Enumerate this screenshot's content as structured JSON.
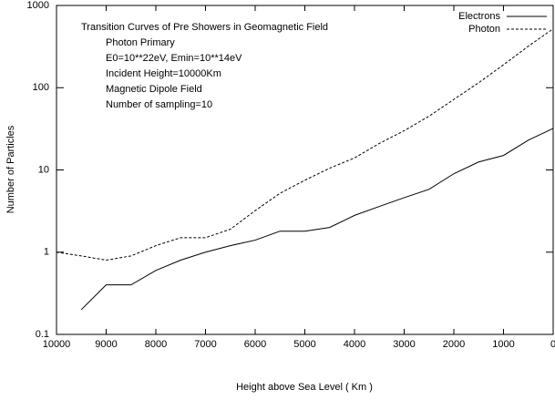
{
  "chart_data": {
    "type": "line",
    "annotations": [
      "Transition Curves of Pre Showers in Geomagnetic Field",
      "Photon Primary",
      "E0=10**22eV, Emin=10**14eV",
      "Incident Height=10000Km",
      "Magnetic Dipole Field",
      "Number of sampling=10"
    ],
    "x_label": "Height above Sea Level ( Km )",
    "y_label": "Number of Particles",
    "x": [
      10000,
      9500,
      9000,
      8500,
      8000,
      7500,
      7000,
      6500,
      6000,
      5500,
      5000,
      4500,
      4000,
      3500,
      3000,
      2500,
      2000,
      1500,
      1000,
      500,
      0
    ],
    "series": [
      {
        "name": "Electrons",
        "color": "#000000",
        "dash": false,
        "values": [
          null,
          0.2,
          0.4,
          0.4,
          0.6,
          0.8,
          1.0,
          1.2,
          1.4,
          1.8,
          1.8,
          2.0,
          2.8,
          3.6,
          4.6,
          5.8,
          9,
          12.5,
          15,
          23,
          32
        ]
      },
      {
        "name": "Photon",
        "color": "#000000",
        "dash": true,
        "values": [
          1.0,
          0.9,
          0.8,
          0.9,
          1.2,
          1.5,
          1.5,
          1.9,
          3.2,
          5.2,
          7.5,
          10.5,
          14,
          21,
          30,
          45,
          72,
          115,
          190,
          320,
          520
        ]
      }
    ],
    "xlim": [
      10000,
      0
    ],
    "xticks": [
      10000,
      9000,
      8000,
      7000,
      6000,
      5000,
      4000,
      3000,
      2000,
      1000,
      0
    ],
    "ylim": [
      0.1,
      1000
    ],
    "yticks": [
      0.1,
      1,
      10,
      100,
      1000
    ],
    "y_log": true,
    "legend": "top-right"
  }
}
